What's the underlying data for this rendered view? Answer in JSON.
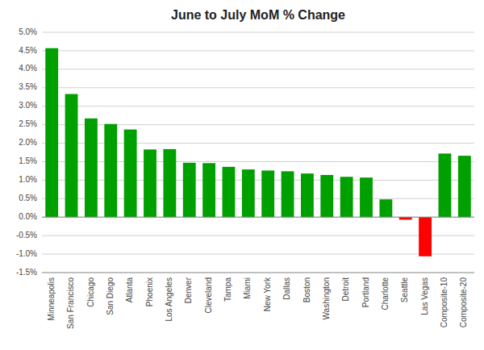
{
  "chart_data": {
    "type": "bar",
    "title": "June to July MoM % Change",
    "categories": [
      "Minneapolis",
      "San Francisco",
      "Chicago",
      "San Diego",
      "Atlanta",
      "Phoenix",
      "Los Angeles",
      "Denver",
      "Cleveland",
      "Tampa",
      "Miami",
      "New York",
      "Dallas",
      "Boston",
      "Washington",
      "Detroit",
      "Portland",
      "Charlotte",
      "Seattle",
      "Las Vegas",
      "Composite-10",
      "Composite-20"
    ],
    "values": [
      4.57,
      3.33,
      2.67,
      2.52,
      2.37,
      1.83,
      1.84,
      1.47,
      1.46,
      1.36,
      1.29,
      1.26,
      1.24,
      1.18,
      1.14,
      1.09,
      1.07,
      0.48,
      -0.07,
      -1.06,
      1.72,
      1.66
    ],
    "colors": [
      "#00a000",
      "#00a000",
      "#00a000",
      "#00a000",
      "#00a000",
      "#00a000",
      "#00a000",
      "#00a000",
      "#00a000",
      "#00a000",
      "#00a000",
      "#00a000",
      "#00a000",
      "#00a000",
      "#00a000",
      "#00a000",
      "#00a000",
      "#00a000",
      "#ff0000",
      "#ff0000",
      "#00a000",
      "#00a000"
    ],
    "ylim": [
      -1.5,
      5.0
    ],
    "yticks": [
      {
        "value": -1.5,
        "label": "-1.5%"
      },
      {
        "value": -1.0,
        "label": "-1.0%"
      },
      {
        "value": -0.5,
        "label": "-0.5%"
      },
      {
        "value": 0.0,
        "label": "0.0%"
      },
      {
        "value": 0.5,
        "label": "0.5%"
      },
      {
        "value": 1.0,
        "label": "1.0%"
      },
      {
        "value": 1.5,
        "label": "1.5%"
      },
      {
        "value": 2.0,
        "label": "2.0%"
      },
      {
        "value": 2.5,
        "label": "2.5%"
      },
      {
        "value": 3.0,
        "label": "3.0%"
      },
      {
        "value": 3.5,
        "label": "3.5%"
      },
      {
        "value": 4.0,
        "label": "4.0%"
      },
      {
        "value": 4.5,
        "label": "4.5%"
      },
      {
        "value": 5.0,
        "label": "5.0%"
      }
    ],
    "grid": true
  }
}
